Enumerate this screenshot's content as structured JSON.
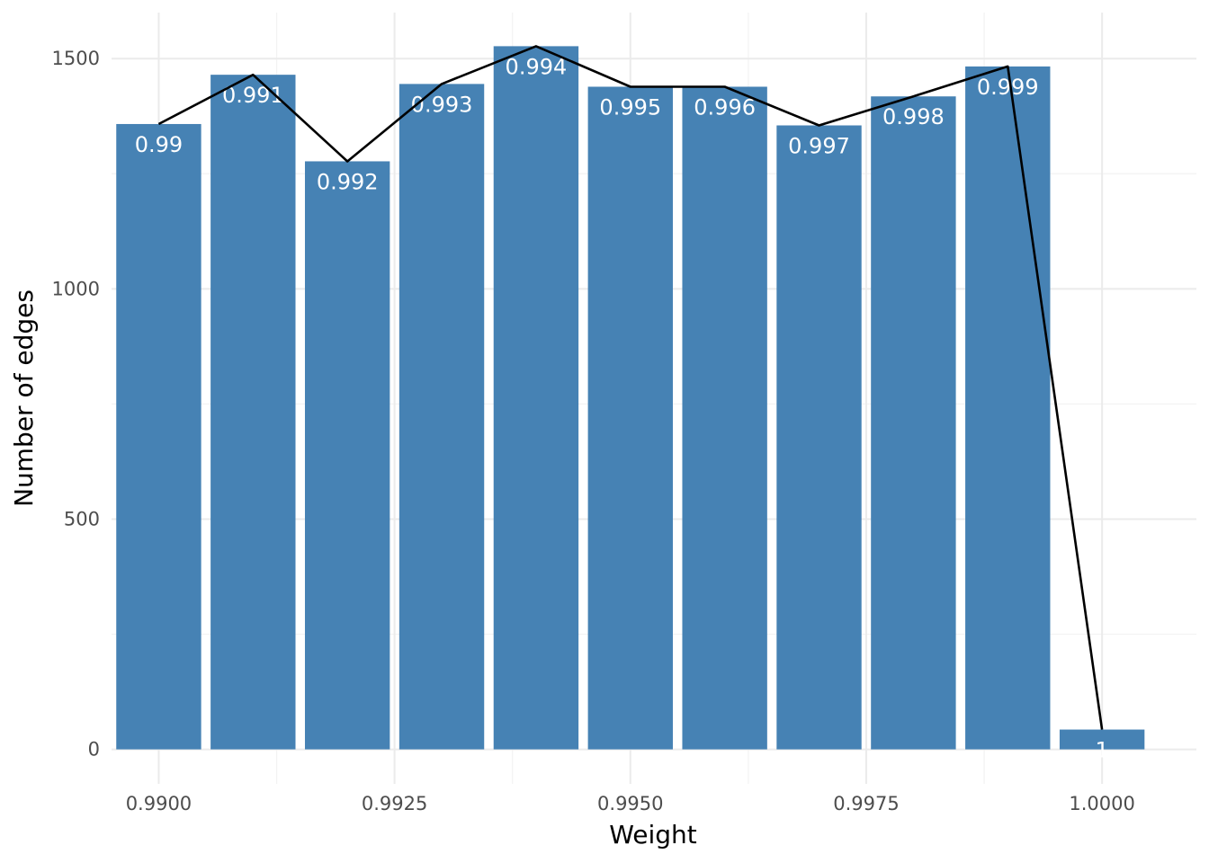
{
  "chart_data": {
    "type": "bar",
    "xlabel": "Weight",
    "ylabel": "Number of edges",
    "xlim": [
      0.9895,
      1.001
    ],
    "ylim": [
      -75,
      1600
    ],
    "x_ticks": [
      0.99,
      0.9925,
      0.995,
      0.9975,
      1.0
    ],
    "x_tick_labels": [
      "0.9900",
      "0.9925",
      "0.9950",
      "0.9975",
      "1.0000"
    ],
    "y_ticks": [
      0,
      500,
      1000,
      1500
    ],
    "y_tick_labels": [
      "0",
      "500",
      "1000",
      "1500"
    ],
    "grid": true,
    "bar_color": "#4682b4",
    "line_color": "#000000",
    "bar_width": 0.0009,
    "bars": [
      {
        "x": 0.99,
        "value": 1358,
        "label": "0.99"
      },
      {
        "x": 0.991,
        "value": 1465,
        "label": "0.991"
      },
      {
        "x": 0.992,
        "value": 1277,
        "label": "0.992"
      },
      {
        "x": 0.993,
        "value": 1445,
        "label": "0.993"
      },
      {
        "x": 0.994,
        "value": 1527,
        "label": "0.994"
      },
      {
        "x": 0.995,
        "value": 1439,
        "label": "0.995"
      },
      {
        "x": 0.996,
        "value": 1439,
        "label": "0.996"
      },
      {
        "x": 0.997,
        "value": 1355,
        "label": "0.997"
      },
      {
        "x": 0.998,
        "value": 1418,
        "label": "0.998"
      },
      {
        "x": 0.999,
        "value": 1483,
        "label": "0.999"
      },
      {
        "x": 1.0,
        "value": 43,
        "label": "1"
      }
    ]
  }
}
